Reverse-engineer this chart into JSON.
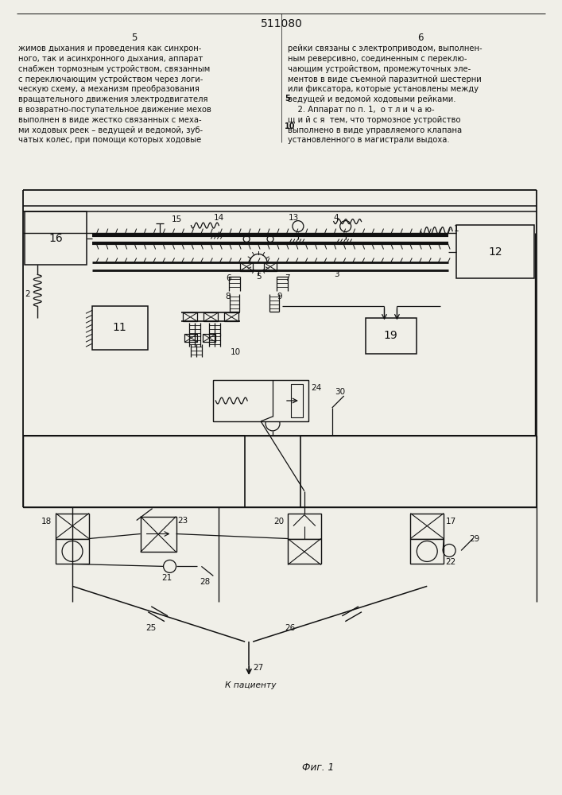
{
  "title": "511080",
  "page_left": "5",
  "page_right": "6",
  "fig_label": "Фиг. 1",
  "patient_label": "К пациенту",
  "text_left": "жимов дыхания и проведения как синхрон-\nного, так и асинхронного дыхания, аппарат\nснабжен тормозным устройством, связанным\nс переключающим устройством через логи-\nческую схему, а механизм преобразования\nвращательного движения электродвигателя\nв возвратно-поступательное движение мехов\nвыполнен в виде жестко связанных с меха-\nми ходовых реек – ведущей и ведомой, зуб-\nчатых колес, при помощи которых ходовые",
  "text_right": "рейки связаны с электроприводом, выполнен-\nным реверсивно, соединенным с переклю-\nчающим устройством, промежуточных эле-\nментов в виде съемной паразитной шестерни\nили фиксатора, которые установлены между\nведущей и ведомой ходовыми рейками.\n    2. Аппарат по п. 1,  о т л и ч а ю-\nщ и й с я  тем, что тормозное устройство\nвыполнено в виде управляемого клапана\nустановленного в магистрали выдоха.",
  "background_color": "#f0efe8",
  "text_color": "#111111",
  "line_color": "#111111",
  "fontsize_text": 7.2,
  "fontsize_title": 10,
  "fontsize_page": 8.5,
  "fontsize_label": 7.5
}
